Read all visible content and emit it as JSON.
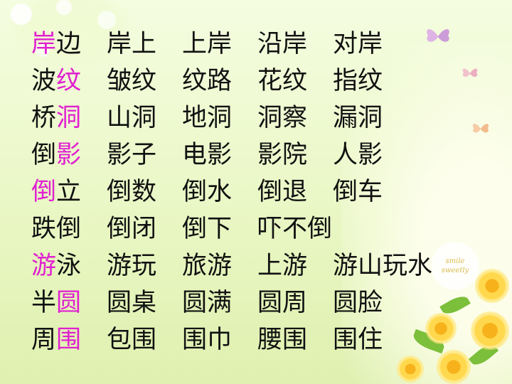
{
  "badge": {
    "line1": "smile",
    "line2": "sweetly"
  },
  "colors": {
    "text": "#111111",
    "highlight": "#e020d0",
    "background": "#eef9cf"
  },
  "rows": [
    {
      "head": [
        {
          "char": "岸",
          "hl": true
        },
        {
          "char": "边",
          "hl": false
        }
      ],
      "words": [
        "岸上",
        "上岸",
        "沿岸",
        "对岸"
      ]
    },
    {
      "head": [
        {
          "char": "波",
          "hl": false
        },
        {
          "char": "纹",
          "hl": true
        }
      ],
      "words": [
        "皱纹",
        "纹路",
        "花纹",
        "指纹"
      ]
    },
    {
      "head": [
        {
          "char": "桥",
          "hl": false
        },
        {
          "char": "洞",
          "hl": true
        }
      ],
      "words": [
        "山洞",
        "地洞",
        "洞察",
        "漏洞"
      ]
    },
    {
      "head": [
        {
          "char": "倒",
          "hl": false
        },
        {
          "char": "影",
          "hl": true
        }
      ],
      "words": [
        "影子",
        "电影",
        "影院",
        "人影"
      ]
    },
    {
      "head": [
        {
          "char": "倒",
          "hl": true
        },
        {
          "char": "立",
          "hl": false
        }
      ],
      "words": [
        "倒数",
        "倒水",
        "倒退",
        "倒车"
      ]
    },
    {
      "head": [
        {
          "char": "跌",
          "hl": false
        },
        {
          "char": "倒",
          "hl": false
        }
      ],
      "words": [
        "倒闭",
        "倒下",
        "吓不倒"
      ]
    },
    {
      "head": [
        {
          "char": "游",
          "hl": true
        },
        {
          "char": "泳",
          "hl": false
        }
      ],
      "words": [
        "游玩",
        "旅游",
        "上游",
        "游山玩水"
      ]
    },
    {
      "head": [
        {
          "char": "半",
          "hl": false
        },
        {
          "char": "圆",
          "hl": true
        }
      ],
      "words": [
        "圆桌",
        "圆满",
        "圆周",
        "圆脸"
      ]
    },
    {
      "head": [
        {
          "char": "周",
          "hl": false
        },
        {
          "char": "围",
          "hl": true
        }
      ],
      "words": [
        "包围",
        "围巾",
        "腰围",
        "围住"
      ]
    }
  ]
}
